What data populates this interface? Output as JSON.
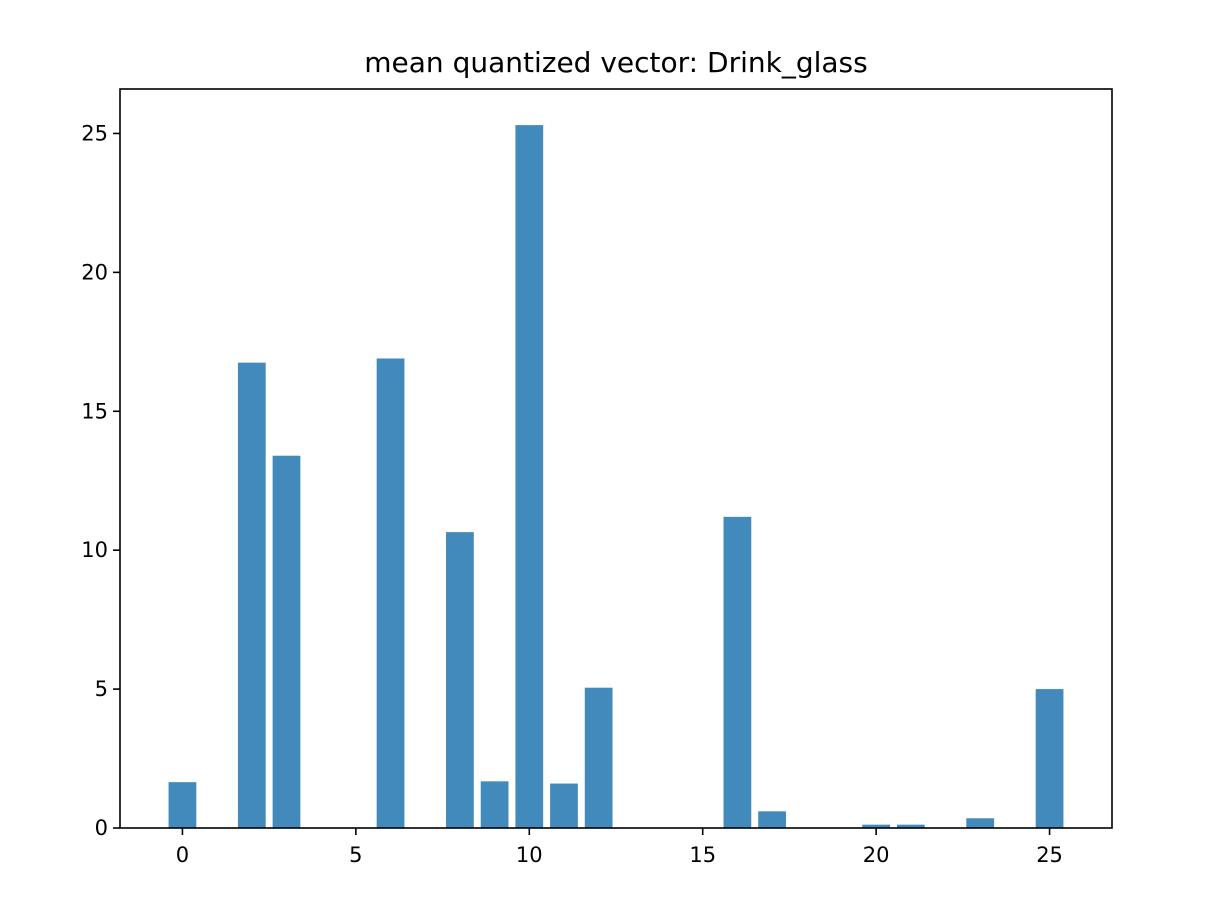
{
  "chart_data": {
    "type": "bar",
    "title": "mean quantized vector: Drink_glass",
    "xlabel": "",
    "ylabel": "",
    "bar_color": "#4289bc",
    "x": [
      0,
      2,
      3,
      6,
      8,
      9,
      10,
      11,
      12,
      16,
      17,
      20,
      21,
      23,
      25
    ],
    "values": [
      1.65,
      16.75,
      13.4,
      16.9,
      10.65,
      1.68,
      25.3,
      1.6,
      5.05,
      11.2,
      0.6,
      0.12,
      0.12,
      0.35,
      5.0
    ],
    "xlim": [
      -1.8,
      26.8
    ],
    "ylim": [
      0,
      26.6
    ],
    "xticks": [
      0,
      5,
      10,
      15,
      20,
      25
    ],
    "yticks": [
      0,
      5,
      10,
      15,
      20,
      25
    ],
    "grid": false,
    "legend": "none"
  }
}
